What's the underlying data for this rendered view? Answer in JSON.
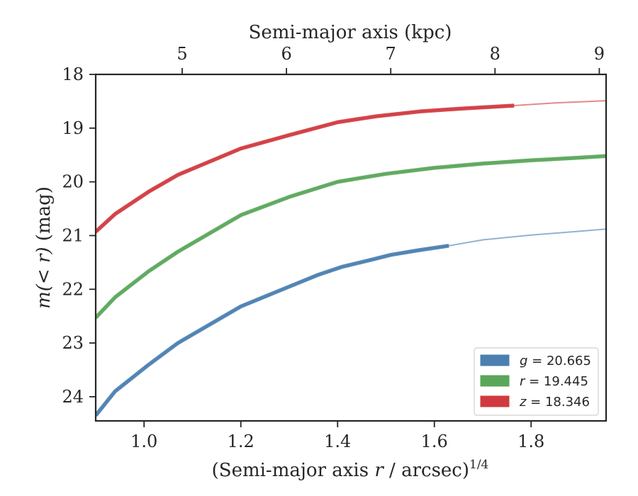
{
  "chart_data": {
    "type": "line",
    "title": "",
    "xlabel": "(Semi-major axis r / arcsec)^{1/4}",
    "xlabel_parts": {
      "prefix": "(Semi-major axis ",
      "var": "r",
      "middle": " / arcsec)",
      "sup": "1/4"
    },
    "ylabel": "m(< r) (mag)",
    "ylabel_parts": {
      "var": "m(< r)",
      "unit": " (mag)"
    },
    "top_xlabel": "Semi-major axis (kpc)",
    "xlim": [
      0.9,
      1.955
    ],
    "ylim": [
      18.0,
      24.45
    ],
    "y_inverted": true,
    "x_ticks": [
      1.0,
      1.2,
      1.4,
      1.6,
      1.8
    ],
    "x_tick_labels": [
      "1.0",
      "1.2",
      "1.4",
      "1.6",
      "1.8"
    ],
    "y_ticks": [
      18,
      19,
      20,
      21,
      22,
      23,
      24
    ],
    "y_tick_labels": [
      "18",
      "19",
      "20",
      "21",
      "22",
      "23",
      "24"
    ],
    "top_ticks": [
      5,
      6,
      7,
      8,
      9
    ],
    "top_tick_labels": [
      "5",
      "6",
      "7",
      "8",
      "9"
    ],
    "top_tick_positions_bottom_units": [
      0.9785,
      1.0865,
      1.193,
      1.301,
      1.409
    ],
    "legend_position": "lower-right",
    "grid": false,
    "series": [
      {
        "name": "g = 20.665",
        "label_var": "g",
        "label_value": "= 20.665",
        "color": "#4a7fb0",
        "band_end_x": 1.63,
        "x": [
          0.9,
          0.94,
          1.01,
          1.07,
          1.2,
          1.3,
          1.36,
          1.41,
          1.47,
          1.51,
          1.57,
          1.63,
          1.7,
          1.8,
          1.9,
          1.955
        ],
        "y": [
          24.35,
          23.9,
          23.4,
          23.0,
          22.32,
          21.95,
          21.73,
          21.58,
          21.45,
          21.36,
          21.27,
          21.19,
          21.08,
          20.99,
          20.92,
          20.88
        ]
      },
      {
        "name": "r = 19.445",
        "label_var": "r",
        "label_value": "= 19.445",
        "color": "#5aa65a",
        "band_end_x": 1.955,
        "x": [
          0.9,
          0.94,
          1.01,
          1.07,
          1.2,
          1.3,
          1.4,
          1.5,
          1.6,
          1.7,
          1.8,
          1.9,
          1.955
        ],
        "y": [
          22.53,
          22.15,
          21.66,
          21.3,
          20.62,
          20.28,
          20.0,
          19.85,
          19.74,
          19.66,
          19.6,
          19.55,
          19.52
        ]
      },
      {
        "name": "z = 18.346",
        "label_var": "z",
        "label_value": "= 18.346",
        "color": "#d03a3f",
        "band_end_x": 1.765,
        "x": [
          0.9,
          0.94,
          1.01,
          1.07,
          1.2,
          1.3,
          1.4,
          1.48,
          1.57,
          1.65,
          1.765,
          1.85,
          1.955
        ],
        "y": [
          20.93,
          20.6,
          20.18,
          19.87,
          19.38,
          19.13,
          18.89,
          18.78,
          18.69,
          18.64,
          18.58,
          18.53,
          18.49
        ]
      }
    ]
  }
}
